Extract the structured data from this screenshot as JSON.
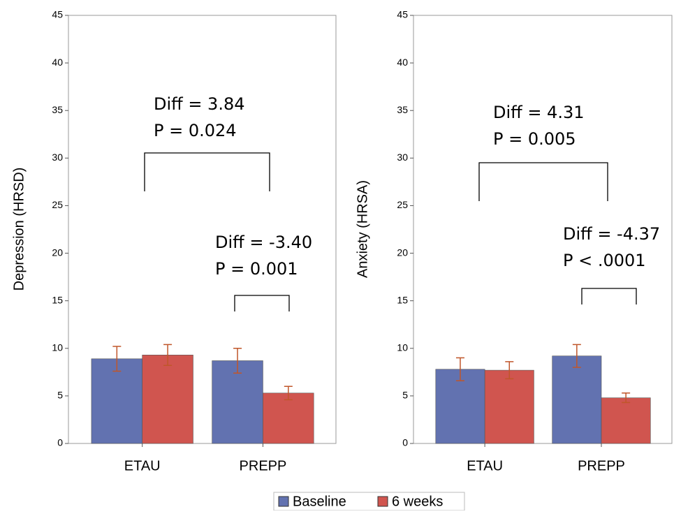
{
  "chart_data": [
    {
      "type": "bar",
      "ylabel": "Depression (HRSD)",
      "categories": [
        "ETAU",
        "PREPP"
      ],
      "series": [
        {
          "name": "Baseline",
          "color": "#6272b0",
          "values": [
            8.9,
            8.7
          ],
          "errors": [
            1.3,
            1.3
          ]
        },
        {
          "name": "6 weeks",
          "color": "#d0554f",
          "values": [
            9.3,
            5.3
          ],
          "errors": [
            1.1,
            0.7
          ]
        }
      ],
      "error_color": "#c0562a",
      "ylim": [
        0,
        45
      ],
      "yticks": [
        0,
        5,
        10,
        15,
        20,
        25,
        30,
        35,
        40,
        45
      ],
      "annotations": [
        [
          "Diff = 3.84",
          "P = 0.024"
        ],
        [
          "Diff = -3.40",
          "P = 0.001"
        ]
      ]
    },
    {
      "type": "bar",
      "ylabel": "Anxiety (HRSA)",
      "categories": [
        "ETAU",
        "PREPP"
      ],
      "series": [
        {
          "color": "#6272b0",
          "values": [
            7.8,
            9.2
          ],
          "errors": [
            1.2,
            1.2
          ]
        },
        {
          "color": "#d0554f",
          "values": [
            7.7,
            4.8
          ],
          "errors": [
            0.9,
            0.5
          ]
        }
      ],
      "error_color": "#c0562a",
      "ylim": [
        0,
        45
      ],
      "yticks": [
        0,
        5,
        10,
        15,
        20,
        25,
        30,
        35,
        40,
        45
      ],
      "annotations": [
        [
          "Diff = 4.31",
          "P = 0.005"
        ],
        [
          "Diff = -4.37",
          "P < .0001"
        ]
      ]
    }
  ]
}
